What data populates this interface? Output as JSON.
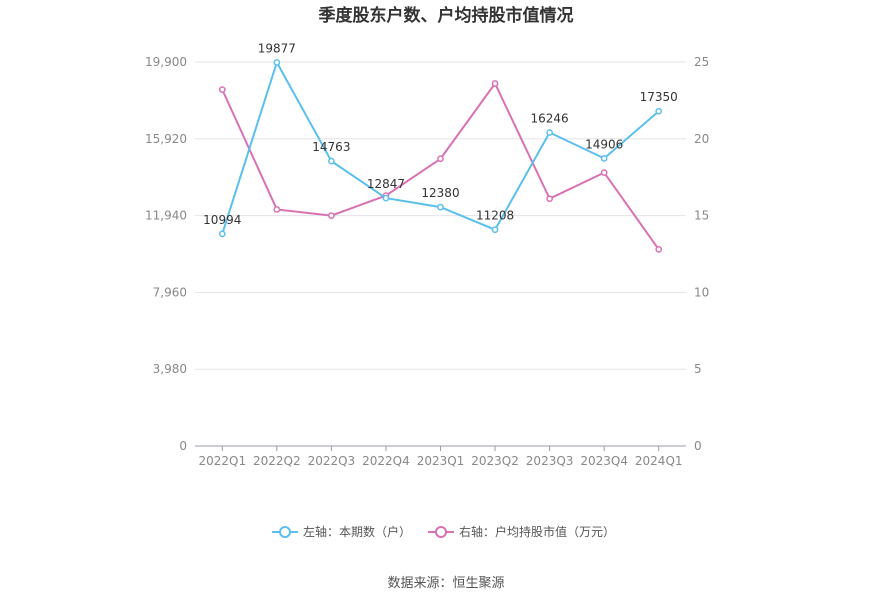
{
  "chart_data": {
    "type": "line",
    "title": "季度股东户数、户均持股市值情况",
    "categories": [
      "2022Q1",
      "2022Q2",
      "2022Q3",
      "2022Q4",
      "2023Q1",
      "2023Q2",
      "2023Q3",
      "2023Q4",
      "2024Q1"
    ],
    "y_left": {
      "ticks": [
        "0",
        "3,980",
        "7,960",
        "11,940",
        "15,920",
        "19,900"
      ],
      "range": [
        0,
        19900
      ]
    },
    "y_right": {
      "ticks": [
        "0",
        "5",
        "10",
        "15",
        "20",
        "25"
      ],
      "range": [
        0,
        25
      ]
    },
    "grid": true,
    "legend_position": "bottom",
    "series": [
      {
        "name": "左轴：本期数（户）",
        "axis": "left",
        "color": "#5bbfee",
        "values": [
          10994,
          19877,
          14763,
          12847,
          12380,
          11208,
          16246,
          14906,
          17350
        ],
        "labels": [
          "10994",
          "19877",
          "14763",
          "12847",
          "12380",
          "11208",
          "16246",
          "14906",
          "17350"
        ]
      },
      {
        "name": "右轴：户均持股市值（万元）",
        "axis": "right",
        "color": "#d971b3",
        "values": [
          23.2,
          15.4,
          15.0,
          16.3,
          18.7,
          23.6,
          16.1,
          17.8,
          12.8
        ]
      }
    ]
  },
  "source": "数据来源：恒生聚源"
}
